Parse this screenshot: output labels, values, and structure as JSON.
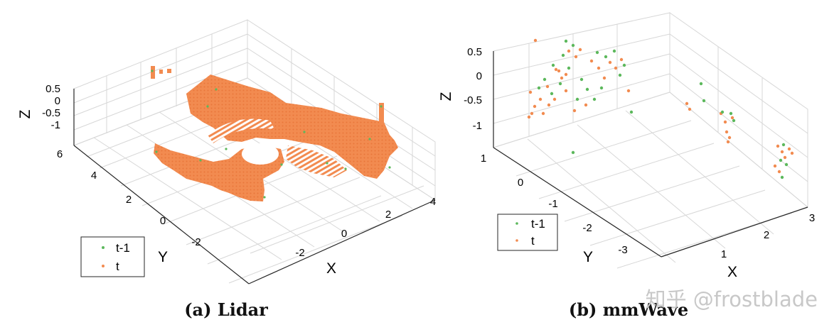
{
  "chart_data": [
    {
      "type": "scatter",
      "subtype": "3d-point-cloud",
      "caption": "(a) Lidar",
      "xlabel": "X",
      "ylabel": "Y",
      "zlabel": "Z",
      "xticks": [
        "-2",
        "0",
        "2",
        "4"
      ],
      "yticks": [
        "-2",
        "0",
        "2",
        "4",
        "6"
      ],
      "zticks": [
        "0.5",
        "0",
        "-0.5",
        "-1"
      ],
      "xlim": [
        -3,
        4.5
      ],
      "ylim": [
        -3,
        6
      ],
      "zlim": [
        -1.2,
        0.6
      ],
      "grid": true,
      "legend": {
        "position": "bottom-left",
        "entries": [
          "t-1",
          "t"
        ]
      },
      "series": [
        {
          "name": "t-1",
          "color": "#5cb85c",
          "description": "dense lidar scan at previous frame (mostly hidden behind t)"
        },
        {
          "name": "t",
          "color": "#f28b50",
          "description": "dense lidar scan at current frame"
        }
      ]
    },
    {
      "type": "scatter",
      "subtype": "3d-point-cloud",
      "caption": "(b) mmWave",
      "xlabel": "X",
      "ylabel": "Y",
      "zlabel": "Z",
      "xticks": [
        "1",
        "2",
        "3"
      ],
      "yticks": [
        "1",
        "0",
        "-1",
        "-2",
        "-3"
      ],
      "zticks": [
        "0.5",
        "0",
        "-0.5",
        "-1"
      ],
      "xlim": [
        0.5,
        3.2
      ],
      "ylim": [
        -3.5,
        1.2
      ],
      "zlim": [
        -1.2,
        0.6
      ],
      "grid": true,
      "legend": {
        "position": "bottom-left",
        "entries": [
          "t-1",
          "t"
        ]
      },
      "series": [
        {
          "name": "t-1",
          "color": "#5cb85c",
          "description": "sparse mmWave points at previous frame"
        },
        {
          "name": "t",
          "color": "#f28b50",
          "description": "sparse mmWave points at current frame"
        }
      ]
    }
  ],
  "watermark": "知乎 @frostblade"
}
